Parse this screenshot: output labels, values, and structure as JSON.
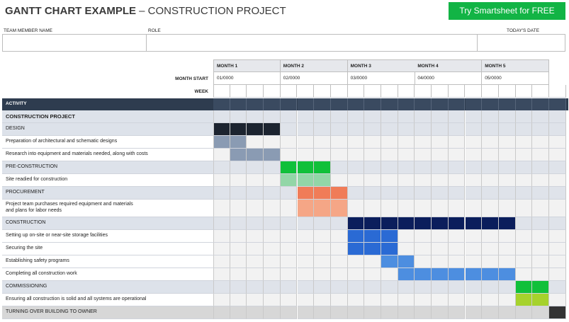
{
  "title": {
    "bold": "GANTT CHART EXAMPLE",
    "rest": " – CONSTRUCTION PROJECT"
  },
  "cta": {
    "label": "Try Smartsheet for FREE",
    "color": "#12b445"
  },
  "header_fields": {
    "team_member_label": "TEAM MEMBER NAME",
    "role_label": "ROLE",
    "date_label": "TODAY'S DATE"
  },
  "timeline": {
    "months": [
      {
        "label": "MONTH 1",
        "start": "01/0000"
      },
      {
        "label": "MONTH 2",
        "start": "02/0000"
      },
      {
        "label": "MONTH 3",
        "start": "03/0000"
      },
      {
        "label": "MONTH 4",
        "start": "04/0000"
      },
      {
        "label": "MONTH 5",
        "start": "05/0000"
      }
    ],
    "month_start_label": "MONTH START",
    "week_label": "WEEK",
    "weeks_per_month": 4,
    "total_weeks": 21
  },
  "activity_header": "ACTIVITY",
  "colors": {
    "activity_bar": "#2e3c4f",
    "phase_row": "#dde2ea",
    "task_row": "#ffffff",
    "cell_bg": "#f2f2f2",
    "final_row": "#d7d7d7"
  },
  "rows": [
    {
      "label": "CONSTRUCTION PROJECT",
      "kind": "project",
      "start": 0,
      "span": 0,
      "color": ""
    },
    {
      "label": "DESIGN",
      "kind": "phase",
      "start": 0,
      "span": 4,
      "color": "#1c2430"
    },
    {
      "label": "Preparation of architectural and schematic designs",
      "kind": "task",
      "start": 0,
      "span": 2,
      "color": "#8a9bb3"
    },
    {
      "label": "Research into equipment and materials needed, along with costs",
      "kind": "task",
      "start": 1,
      "span": 3,
      "color": "#8a9bb3"
    },
    {
      "label": "PRE-CONSTRUCTION",
      "kind": "phase",
      "start": 4,
      "span": 3,
      "color": "#10c03a"
    },
    {
      "label": "Site readied for construction",
      "kind": "task",
      "start": 4,
      "span": 3,
      "color": "#92d6a7"
    },
    {
      "label": "PROCUREMENT",
      "kind": "phase",
      "start": 5,
      "span": 3,
      "color": "#f07c58"
    },
    {
      "label": "Project team purchases required equipment and materials\nand plans for labor needs",
      "kind": "task",
      "start": 5,
      "span": 3,
      "color": "#f5a686"
    },
    {
      "label": "CONSTRUCTION",
      "kind": "phase",
      "start": 8,
      "span": 10,
      "color": "#0b1e5c"
    },
    {
      "label": "Setting up on-site or near-site storage facilities",
      "kind": "task",
      "start": 8,
      "span": 3,
      "color": "#2a6ad4"
    },
    {
      "label": "Securing the site",
      "kind": "task",
      "start": 8,
      "span": 3,
      "color": "#2a6ad4"
    },
    {
      "label": "Establishing safety programs",
      "kind": "task",
      "start": 10,
      "span": 2,
      "color": "#4d8ee0"
    },
    {
      "label": "Completing all construction work",
      "kind": "task",
      "start": 11,
      "span": 7,
      "color": "#4d8ee0"
    },
    {
      "label": "COMMISSIONING",
      "kind": "phase",
      "start": 18,
      "span": 2,
      "color": "#10c03a"
    },
    {
      "label": "Ensuring all construction is solid and all systems are operational",
      "kind": "task",
      "start": 18,
      "span": 2,
      "color": "#a6d22c"
    },
    {
      "label": "TURNING OVER BUILDING TO OWNER",
      "kind": "final",
      "start": 20,
      "span": 1,
      "color": "#333333"
    }
  ]
}
